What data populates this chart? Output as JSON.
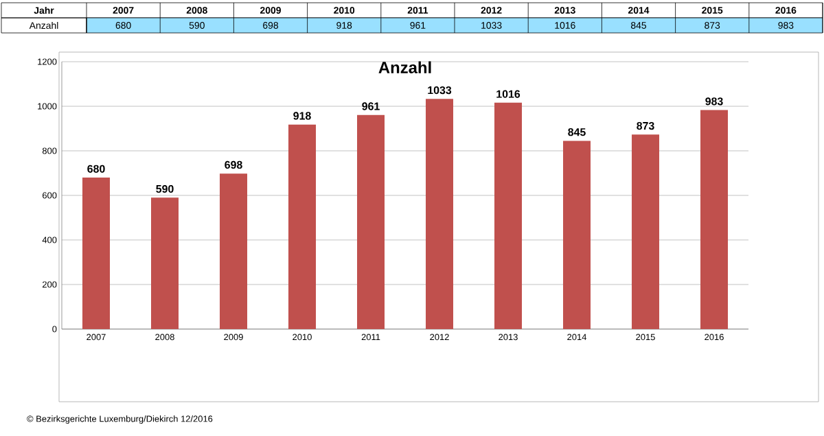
{
  "chart_data": {
    "type": "bar",
    "title": "Anzahl",
    "xlabel": "Jahr",
    "categories": [
      "2007",
      "2008",
      "2009",
      "2010",
      "2011",
      "2012",
      "2013",
      "2014",
      "2015",
      "2016"
    ],
    "series": [
      {
        "name": "Anzahl",
        "color": "#c0504d",
        "values": [
          680,
          590,
          698,
          918,
          961,
          1033,
          1016,
          845,
          873,
          983
        ],
        "value_labels": [
          "680",
          "590",
          "698",
          "918",
          "961",
          "1033",
          "1016",
          "845",
          "873",
          "983"
        ]
      }
    ],
    "ylim": [
      0,
      1200
    ],
    "yticks": [
      0,
      200,
      400,
      600,
      800,
      1000,
      1200
    ],
    "grid": "y",
    "annotations": [
      "© Bezirksgerichte Luxemburg/Diekirch 12/2016"
    ]
  }
}
